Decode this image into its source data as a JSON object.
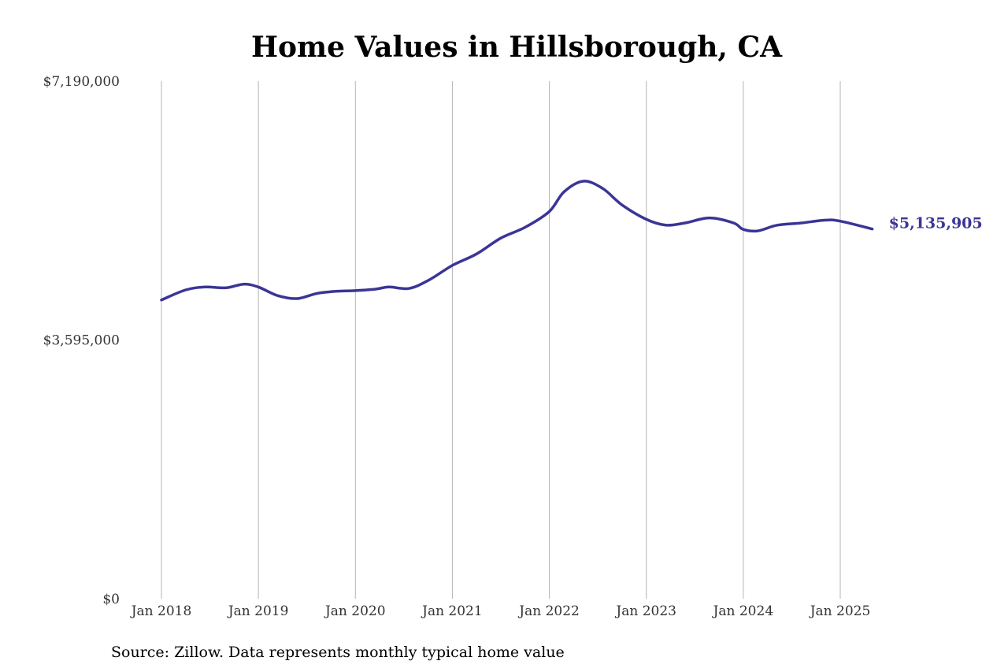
{
  "chart_data": {
    "type": "line",
    "title": "Home Values in Hillsborough, CA",
    "source": "Source: Zillow. Data represents monthly typical home value",
    "xlabel": "",
    "ylabel": "",
    "ylim": [
      0,
      7190000
    ],
    "y_ticks": [
      {
        "value": 7190000,
        "label": "$7,190,000"
      },
      {
        "value": 3595000,
        "label": "$3,595,000"
      },
      {
        "value": 0,
        "label": "$0"
      }
    ],
    "x_ticks": [
      {
        "value": 2018,
        "label": "Jan 2018"
      },
      {
        "value": 2019,
        "label": "Jan 2019"
      },
      {
        "value": 2020,
        "label": "Jan 2020"
      },
      {
        "value": 2021,
        "label": "Jan 2021"
      },
      {
        "value": 2022,
        "label": "Jan 2022"
      },
      {
        "value": 2023,
        "label": "Jan 2023"
      },
      {
        "value": 2024,
        "label": "Jan 2024"
      },
      {
        "value": 2025,
        "label": "Jan 2025"
      }
    ],
    "grid": "vertical",
    "line_color": "#3a3596",
    "end_label": "$5,135,905",
    "series": [
      {
        "values": [
          [
            2018.0,
            4150000
          ],
          [
            2018.25,
            4290000
          ],
          [
            2018.45,
            4330000
          ],
          [
            2018.67,
            4320000
          ],
          [
            2018.85,
            4370000
          ],
          [
            2019.0,
            4330000
          ],
          [
            2019.2,
            4210000
          ],
          [
            2019.4,
            4170000
          ],
          [
            2019.6,
            4240000
          ],
          [
            2019.8,
            4270000
          ],
          [
            2020.0,
            4280000
          ],
          [
            2020.2,
            4300000
          ],
          [
            2020.35,
            4330000
          ],
          [
            2020.55,
            4310000
          ],
          [
            2020.75,
            4420000
          ],
          [
            2021.0,
            4630000
          ],
          [
            2021.25,
            4790000
          ],
          [
            2021.5,
            5010000
          ],
          [
            2021.75,
            5160000
          ],
          [
            2022.0,
            5380000
          ],
          [
            2022.15,
            5650000
          ],
          [
            2022.35,
            5800000
          ],
          [
            2022.55,
            5700000
          ],
          [
            2022.75,
            5470000
          ],
          [
            2023.0,
            5270000
          ],
          [
            2023.2,
            5190000
          ],
          [
            2023.4,
            5220000
          ],
          [
            2023.65,
            5290000
          ],
          [
            2023.9,
            5220000
          ],
          [
            2024.0,
            5130000
          ],
          [
            2024.15,
            5110000
          ],
          [
            2024.35,
            5190000
          ],
          [
            2024.6,
            5220000
          ],
          [
            2024.85,
            5260000
          ],
          [
            2025.0,
            5245000
          ],
          [
            2025.33,
            5135905
          ]
        ]
      }
    ]
  }
}
